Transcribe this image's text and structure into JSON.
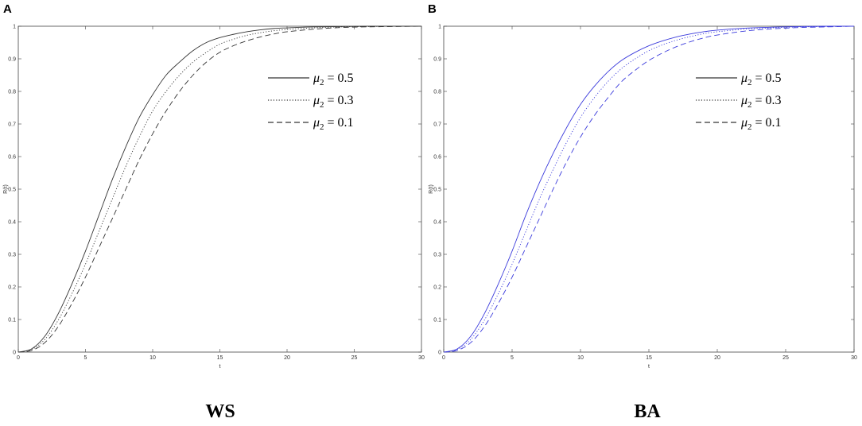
{
  "panels": [
    {
      "letter": "A",
      "caption": "WS"
    },
    {
      "letter": "B",
      "caption": "BA"
    }
  ],
  "legend_labels": [
    {
      "sym": "μ",
      "sub": "2",
      "rest": " = 0.5"
    },
    {
      "sym": "μ",
      "sub": "2",
      "rest": " = 0.3"
    },
    {
      "sym": "μ",
      "sub": "2",
      "rest": " = 0.1"
    }
  ],
  "chart_data": [
    {
      "type": "line",
      "xlabel": "t",
      "ylabel": "R(t)",
      "xlim": [
        0,
        30
      ],
      "ylim": [
        0,
        1
      ],
      "xticks": [
        0,
        5,
        10,
        15,
        20,
        25,
        30
      ],
      "yticks": [
        0,
        0.1,
        0.2,
        0.3,
        0.4,
        0.5,
        0.6,
        0.7,
        0.8,
        0.9,
        1
      ],
      "color": "#333333",
      "x": [
        0,
        1,
        2,
        3,
        4,
        5,
        6,
        7,
        8,
        9,
        10,
        11,
        12,
        13,
        14,
        15,
        16,
        17,
        18,
        19,
        20,
        22,
        24,
        26,
        28,
        30
      ],
      "series": [
        {
          "name": "μ2 = 0.5",
          "style": "solid",
          "values": [
            0,
            0.01,
            0.05,
            0.12,
            0.21,
            0.31,
            0.42,
            0.53,
            0.63,
            0.72,
            0.79,
            0.85,
            0.89,
            0.925,
            0.95,
            0.965,
            0.975,
            0.983,
            0.989,
            0.993,
            0.995,
            0.998,
            0.999,
            1,
            1,
            1
          ]
        },
        {
          "name": "μ2 = 0.3",
          "style": "dotted",
          "values": [
            0,
            0.008,
            0.04,
            0.1,
            0.18,
            0.27,
            0.37,
            0.47,
            0.57,
            0.66,
            0.74,
            0.8,
            0.85,
            0.89,
            0.92,
            0.945,
            0.96,
            0.972,
            0.98,
            0.986,
            0.99,
            0.995,
            0.998,
            0.999,
            1,
            1
          ]
        },
        {
          "name": "μ2 = 0.1",
          "style": "dashed",
          "values": [
            0,
            0.005,
            0.03,
            0.08,
            0.15,
            0.23,
            0.32,
            0.41,
            0.5,
            0.59,
            0.67,
            0.74,
            0.8,
            0.85,
            0.89,
            0.92,
            0.94,
            0.955,
            0.967,
            0.976,
            0.983,
            0.991,
            0.996,
            0.998,
            0.999,
            1
          ]
        }
      ]
    },
    {
      "type": "line",
      "xlabel": "t",
      "ylabel": "R(t)",
      "xlim": [
        0,
        30
      ],
      "ylim": [
        0,
        1
      ],
      "xticks": [
        0,
        5,
        10,
        15,
        20,
        25,
        30
      ],
      "yticks": [
        0,
        0.1,
        0.2,
        0.3,
        0.4,
        0.5,
        0.6,
        0.7,
        0.8,
        0.9,
        1
      ],
      "color": "#3b3bdc",
      "x": [
        0,
        1,
        2,
        3,
        4,
        5,
        6,
        7,
        8,
        9,
        10,
        11,
        12,
        13,
        14,
        15,
        16,
        17,
        18,
        19,
        20,
        22,
        24,
        26,
        28,
        30
      ],
      "series": [
        {
          "name": "μ2 = 0.5",
          "style": "solid",
          "values": [
            0,
            0.01,
            0.05,
            0.12,
            0.21,
            0.31,
            0.42,
            0.52,
            0.61,
            0.69,
            0.76,
            0.815,
            0.86,
            0.895,
            0.92,
            0.94,
            0.955,
            0.967,
            0.976,
            0.983,
            0.988,
            0.994,
            0.997,
            0.999,
            1,
            1
          ]
        },
        {
          "name": "μ2 = 0.3",
          "style": "dotted",
          "values": [
            0,
            0.008,
            0.04,
            0.1,
            0.18,
            0.27,
            0.37,
            0.47,
            0.56,
            0.645,
            0.72,
            0.78,
            0.83,
            0.87,
            0.9,
            0.925,
            0.943,
            0.957,
            0.968,
            0.977,
            0.983,
            0.991,
            0.995,
            0.998,
            0.999,
            1
          ]
        },
        {
          "name": "μ2 = 0.1",
          "style": "dashed",
          "values": [
            0,
            0.005,
            0.03,
            0.08,
            0.15,
            0.23,
            0.32,
            0.41,
            0.5,
            0.585,
            0.66,
            0.725,
            0.78,
            0.83,
            0.865,
            0.895,
            0.918,
            0.937,
            0.952,
            0.964,
            0.973,
            0.985,
            0.992,
            0.996,
            0.998,
            1
          ]
        }
      ]
    }
  ]
}
